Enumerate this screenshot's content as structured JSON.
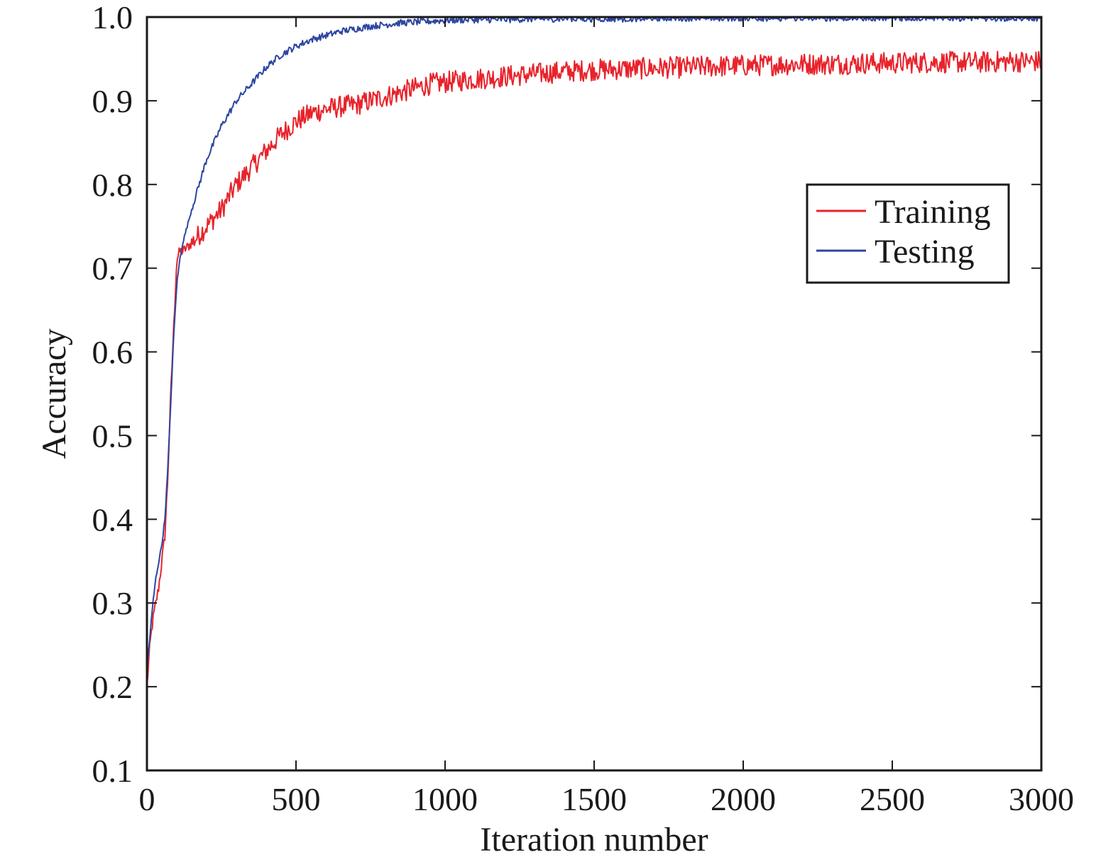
{
  "chart_data": {
    "type": "line",
    "title": "",
    "xlabel": "Iteration number",
    "ylabel": "Accuracy",
    "xlim": [
      0,
      3000
    ],
    "ylim": [
      0.1,
      1.0
    ],
    "xticks": [
      0,
      500,
      1000,
      1500,
      2000,
      2500,
      3000
    ],
    "xtick_labels": [
      "0",
      "500",
      "1000",
      "1500",
      "2000",
      "2500",
      "3000"
    ],
    "yticks": [
      0.1,
      0.2,
      0.3,
      0.4,
      0.5,
      0.6,
      0.7,
      0.8,
      0.9,
      1.0
    ],
    "ytick_labels": [
      "0.1",
      "0.2",
      "0.3",
      "0.4",
      "0.5",
      "0.6",
      "0.7",
      "0.8",
      "0.9",
      "1.0"
    ],
    "grid": false,
    "legend_position": "right",
    "series": [
      {
        "name": "Training",
        "color": "#e8232b",
        "x": [
          0,
          10,
          20,
          30,
          40,
          50,
          60,
          70,
          80,
          90,
          100,
          110,
          120,
          150,
          200,
          250,
          300,
          350,
          400,
          450,
          500,
          550,
          600,
          650,
          700,
          750,
          800,
          850,
          900,
          950,
          1000,
          1100,
          1200,
          1300,
          1400,
          1500,
          1600,
          1700,
          1800,
          1900,
          2000,
          2100,
          2200,
          2300,
          2400,
          2500,
          2600,
          2700,
          2800,
          2900,
          3000
        ],
        "y": [
          0.2,
          0.25,
          0.28,
          0.3,
          0.32,
          0.35,
          0.38,
          0.45,
          0.55,
          0.63,
          0.71,
          0.72,
          0.72,
          0.73,
          0.75,
          0.77,
          0.8,
          0.82,
          0.84,
          0.86,
          0.875,
          0.885,
          0.89,
          0.893,
          0.895,
          0.9,
          0.905,
          0.91,
          0.915,
          0.92,
          0.922,
          0.926,
          0.929,
          0.932,
          0.935,
          0.937,
          0.938,
          0.939,
          0.94,
          0.941,
          0.942,
          0.943,
          0.944,
          0.944,
          0.945,
          0.945,
          0.946,
          0.946,
          0.946,
          0.947,
          0.947
        ]
      },
      {
        "name": "Testing",
        "color": "#2c46a0",
        "x": [
          0,
          10,
          20,
          30,
          40,
          50,
          60,
          70,
          80,
          90,
          100,
          110,
          120,
          150,
          200,
          250,
          300,
          350,
          400,
          450,
          500,
          550,
          600,
          650,
          700,
          750,
          800,
          850,
          900,
          950,
          1000,
          1100,
          1200,
          1300,
          1400,
          1500,
          1600,
          1700,
          1800,
          1900,
          2000,
          2100,
          2200,
          2300,
          2400,
          2500,
          2600,
          2700,
          2800,
          2900,
          3000
        ],
        "y": [
          0.22,
          0.26,
          0.3,
          0.33,
          0.35,
          0.37,
          0.4,
          0.46,
          0.54,
          0.62,
          0.68,
          0.71,
          0.73,
          0.77,
          0.83,
          0.87,
          0.9,
          0.92,
          0.94,
          0.955,
          0.965,
          0.973,
          0.978,
          0.983,
          0.986,
          0.989,
          0.991,
          0.993,
          0.994,
          0.995,
          0.996,
          0.997,
          0.997,
          0.998,
          0.998,
          0.998,
          0.998,
          0.999,
          0.999,
          0.999,
          0.999,
          0.999,
          0.999,
          0.999,
          0.999,
          0.999,
          0.999,
          0.999,
          0.999,
          0.999,
          0.999
        ]
      }
    ]
  }
}
